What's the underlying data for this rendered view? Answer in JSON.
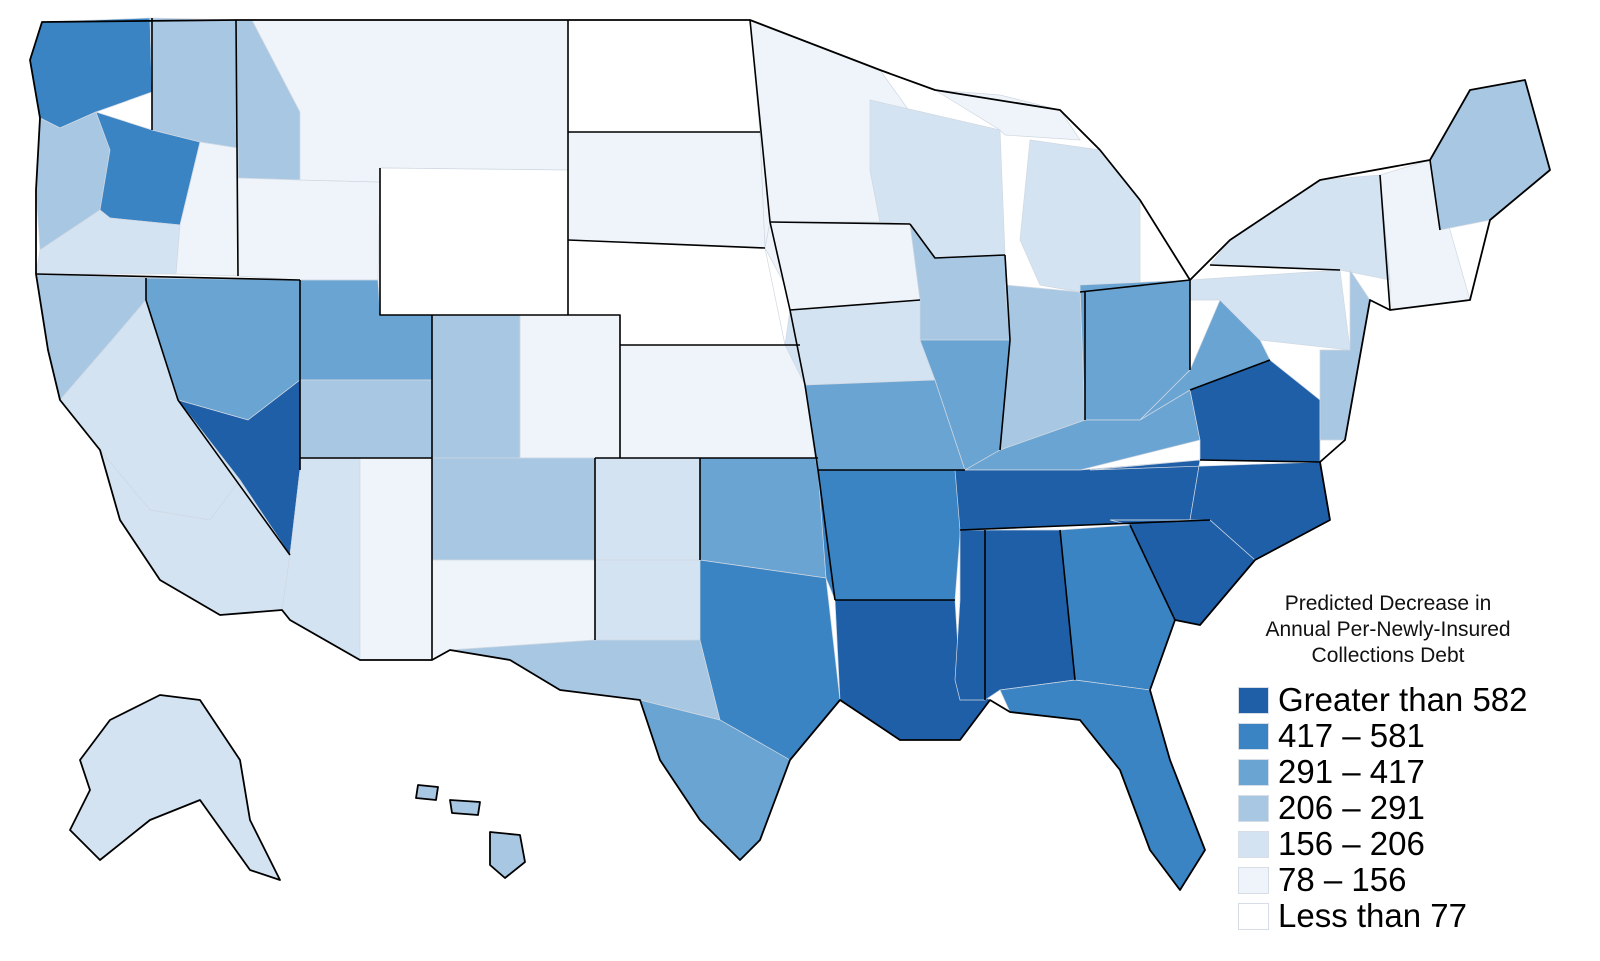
{
  "legend": {
    "title": "Predicted Decrease in\nAnnual Per-Newly-Insured\nCollections Debt",
    "bins": [
      {
        "label": "Greater than 582",
        "color": "#1f5fa8",
        "swatch": "legend-swatch-greater-than-582"
      },
      {
        "label": "417 – 581",
        "color": "#3a84c4",
        "swatch": "legend-swatch-417-581"
      },
      {
        "label": "291 – 417",
        "color": "#6aa4d3",
        "swatch": "legend-swatch-291-417"
      },
      {
        "label": "206 – 291",
        "color": "#a8c7e3",
        "swatch": "legend-swatch-206-291"
      },
      {
        "label": "156 – 206",
        "color": "#d3e3f2",
        "swatch": "legend-swatch-156-206"
      },
      {
        "label": "78 – 156",
        "color": "#eef4fa",
        "swatch": "legend-swatch-78-156"
      },
      {
        "label": "Less than 77",
        "color": "#ffffff",
        "swatch": "legend-swatch-less-than-77"
      }
    ]
  },
  "regions": [
    {
      "name": "washington-west",
      "bin": 1
    },
    {
      "name": "washington-east",
      "bin": 3
    },
    {
      "name": "oregon-west",
      "bin": 3
    },
    {
      "name": "oregon-central",
      "bin": 1
    },
    {
      "name": "oregon-east",
      "bin": 4
    },
    {
      "name": "california-north",
      "bin": 3
    },
    {
      "name": "california-central",
      "bin": 4
    },
    {
      "name": "california-south",
      "bin": 4
    },
    {
      "name": "nevada-west",
      "bin": 2
    },
    {
      "name": "nevada-south",
      "bin": 0
    },
    {
      "name": "idaho-north",
      "bin": 3
    },
    {
      "name": "idaho-south",
      "bin": 5
    },
    {
      "name": "montana",
      "bin": 5
    },
    {
      "name": "wyoming",
      "bin": 6
    },
    {
      "name": "utah-north",
      "bin": 2
    },
    {
      "name": "utah-south",
      "bin": 3
    },
    {
      "name": "colorado-east",
      "bin": 5
    },
    {
      "name": "colorado-west",
      "bin": 3
    },
    {
      "name": "arizona-west",
      "bin": 4
    },
    {
      "name": "arizona-east",
      "bin": 5
    },
    {
      "name": "new-mexico-north",
      "bin": 3
    },
    {
      "name": "new-mexico-south",
      "bin": 5
    },
    {
      "name": "north-dakota",
      "bin": 6
    },
    {
      "name": "south-dakota",
      "bin": 5
    },
    {
      "name": "nebraska",
      "bin": 6
    },
    {
      "name": "kansas",
      "bin": 5
    },
    {
      "name": "oklahoma-west",
      "bin": 4
    },
    {
      "name": "oklahoma-east",
      "bin": 2
    },
    {
      "name": "texas-panhandle",
      "bin": 4
    },
    {
      "name": "texas-central",
      "bin": 3
    },
    {
      "name": "texas-east",
      "bin": 1
    },
    {
      "name": "texas-south",
      "bin": 2
    },
    {
      "name": "minnesota",
      "bin": 5
    },
    {
      "name": "iowa",
      "bin": 5
    },
    {
      "name": "missouri-north",
      "bin": 4
    },
    {
      "name": "missouri-south",
      "bin": 2
    },
    {
      "name": "arkansas",
      "bin": 1
    },
    {
      "name": "louisiana",
      "bin": 0
    },
    {
      "name": "wisconsin",
      "bin": 4
    },
    {
      "name": "illinois-north",
      "bin": 3
    },
    {
      "name": "illinois-south",
      "bin": 2
    },
    {
      "name": "michigan-upper",
      "bin": 5
    },
    {
      "name": "michigan-lower",
      "bin": 4
    },
    {
      "name": "indiana",
      "bin": 3
    },
    {
      "name": "ohio",
      "bin": 2
    },
    {
      "name": "kentucky",
      "bin": 2
    },
    {
      "name": "tennessee",
      "bin": 0
    },
    {
      "name": "mississippi",
      "bin": 0
    },
    {
      "name": "alabama",
      "bin": 0
    },
    {
      "name": "georgia",
      "bin": 1
    },
    {
      "name": "florida",
      "bin": 1
    },
    {
      "name": "south-carolina",
      "bin": 0
    },
    {
      "name": "north-carolina",
      "bin": 0
    },
    {
      "name": "virginia",
      "bin": 0
    },
    {
      "name": "west-virginia",
      "bin": 2
    },
    {
      "name": "pennsylvania",
      "bin": 4
    },
    {
      "name": "new-york",
      "bin": 4
    },
    {
      "name": "new-england",
      "bin": 5
    },
    {
      "name": "maine",
      "bin": 3
    },
    {
      "name": "mid-atlantic",
      "bin": 3
    },
    {
      "name": "alaska",
      "bin": 4
    },
    {
      "name": "hawaii",
      "bin": 3
    }
  ]
}
